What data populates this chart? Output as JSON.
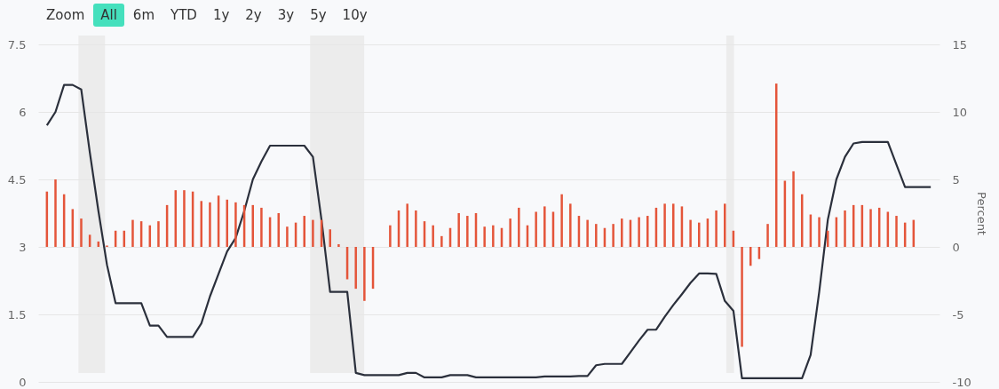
{
  "chart_data": {
    "type": "line",
    "annotations": [
      "Zoom",
      "All",
      "6m",
      "YTD",
      "1y",
      "2y",
      "3y",
      "5y",
      "10y"
    ],
    "y2label": "Percent",
    "categories": [
      null,
      null,
      null,
      null,
      null,
      null,
      null,
      null,
      null,
      null,
      null,
      null,
      null,
      null,
      null,
      null,
      null,
      null,
      null,
      null,
      null,
      null,
      null,
      null,
      null,
      null,
      null,
      null,
      null,
      null,
      null,
      null,
      null,
      null,
      null,
      null,
      null,
      null,
      null,
      null,
      null,
      null,
      null,
      null,
      null,
      null,
      null,
      null,
      null,
      null,
      null,
      null,
      null,
      null,
      null,
      null,
      null,
      null,
      null,
      null,
      null,
      null,
      null,
      null,
      null,
      null,
      null,
      null,
      null,
      null,
      null,
      null,
      null,
      null,
      null,
      null,
      null,
      null,
      null,
      null,
      null,
      null,
      null,
      null,
      null,
      null,
      null,
      null,
      null,
      null,
      null,
      null,
      null,
      null,
      null,
      null,
      null,
      null,
      null,
      null,
      null,
      null,
      null,
      null
    ],
    "series": [
      {
        "color": "#2b303c",
        "values": [
          5.7,
          6.0,
          6.6,
          6.6,
          6.5,
          5.1,
          3.8,
          2.6,
          1.75,
          1.75,
          1.75,
          1.75,
          1.25,
          1.25,
          1.0,
          1.0,
          1.0,
          1.0,
          1.3,
          1.9,
          2.4,
          2.9,
          3.2,
          3.8,
          4.5,
          4.9,
          5.25,
          5.25,
          5.25,
          5.25,
          5.25,
          5.0,
          3.6,
          2.0,
          2.0,
          2.0,
          0.2,
          0.15,
          0.15,
          0.15,
          0.15,
          0.15,
          0.2,
          0.2,
          0.1,
          0.1,
          0.1,
          0.15,
          0.15,
          0.15,
          0.1,
          0.1,
          0.1,
          0.1,
          0.1,
          0.1,
          0.1,
          0.1,
          0.12,
          0.12,
          0.12,
          0.12,
          0.13,
          0.13,
          0.37,
          0.4,
          0.4,
          0.4,
          0.66,
          0.92,
          1.16,
          1.16,
          1.45,
          1.71,
          1.95,
          2.2,
          2.41,
          2.41,
          2.4,
          1.8,
          1.58,
          0.08,
          0.08,
          0.08,
          0.08,
          0.08,
          0.08,
          0.08,
          0.08,
          0.6,
          2.0,
          3.6,
          4.5,
          5.0,
          5.3,
          5.33,
          5.33,
          5.33,
          5.33,
          4.83,
          4.33,
          4.33,
          4.33,
          4.33
        ]
      },
      {
        "type": "bar",
        "axis": "y2",
        "color": "#e4553a",
        "values": [
          4.1,
          5.0,
          3.9,
          2.8,
          2.1,
          0.9,
          0.4,
          0.1,
          1.2,
          1.2,
          2.0,
          1.9,
          1.6,
          1.9,
          3.1,
          4.2,
          4.2,
          4.1,
          3.4,
          3.3,
          3.8,
          3.5,
          3.3,
          3.1,
          3.1,
          2.9,
          2.2,
          2.5,
          1.5,
          1.8,
          2.3,
          2.0,
          2.0,
          1.3,
          0.2,
          -2.4,
          -3.1,
          -4.0,
          -3.1,
          null,
          1.6,
          2.7,
          3.2,
          2.7,
          1.9,
          1.6,
          0.8,
          1.4,
          2.5,
          2.3,
          2.5,
          1.5,
          1.6,
          1.4,
          2.1,
          2.9,
          1.6,
          2.6,
          3.0,
          2.6,
          3.9,
          3.2,
          2.3,
          2.0,
          1.7,
          1.4,
          1.7,
          2.1,
          2.0,
          2.2,
          2.3,
          2.9,
          3.2,
          3.2,
          3.0,
          2.0,
          1.8,
          2.1,
          2.7,
          3.2,
          1.2,
          -7.4,
          -1.4,
          -0.9,
          1.7,
          12.1,
          4.9,
          5.6,
          3.9,
          2.4,
          2.2,
          1.2,
          2.2,
          2.7,
          3.1,
          3.1,
          2.8,
          2.9,
          2.6,
          2.3,
          1.8,
          2.0,
          null,
          null
        ]
      }
    ],
    "ylim": [
      0,
      7.5
    ],
    "yticks": [
      0,
      1.5,
      3,
      4.5,
      6,
      7.5
    ],
    "y2lim": [
      -10,
      15
    ],
    "y2ticks": [
      -10,
      -5,
      0,
      5,
      10,
      15
    ],
    "grid": "y",
    "tick_labels": "y",
    "line_style": "solid"
  }
}
